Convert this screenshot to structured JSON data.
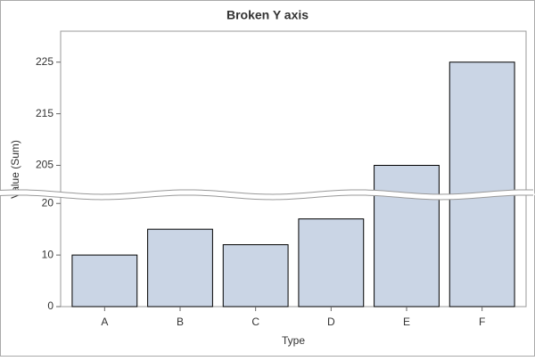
{
  "chart_data": {
    "type": "bar",
    "title": "Broken Y axis",
    "xlabel": "Type",
    "ylabel": "Value (Sum)",
    "categories": [
      "A",
      "B",
      "C",
      "D",
      "E",
      "F"
    ],
    "values": [
      10,
      15,
      12,
      17,
      205,
      225
    ],
    "color": "#cad5e5",
    "ylim": [
      0,
      231
    ],
    "ybreak": [
      21,
      200
    ],
    "yticks": [
      0,
      10,
      20,
      205,
      215,
      225
    ]
  }
}
